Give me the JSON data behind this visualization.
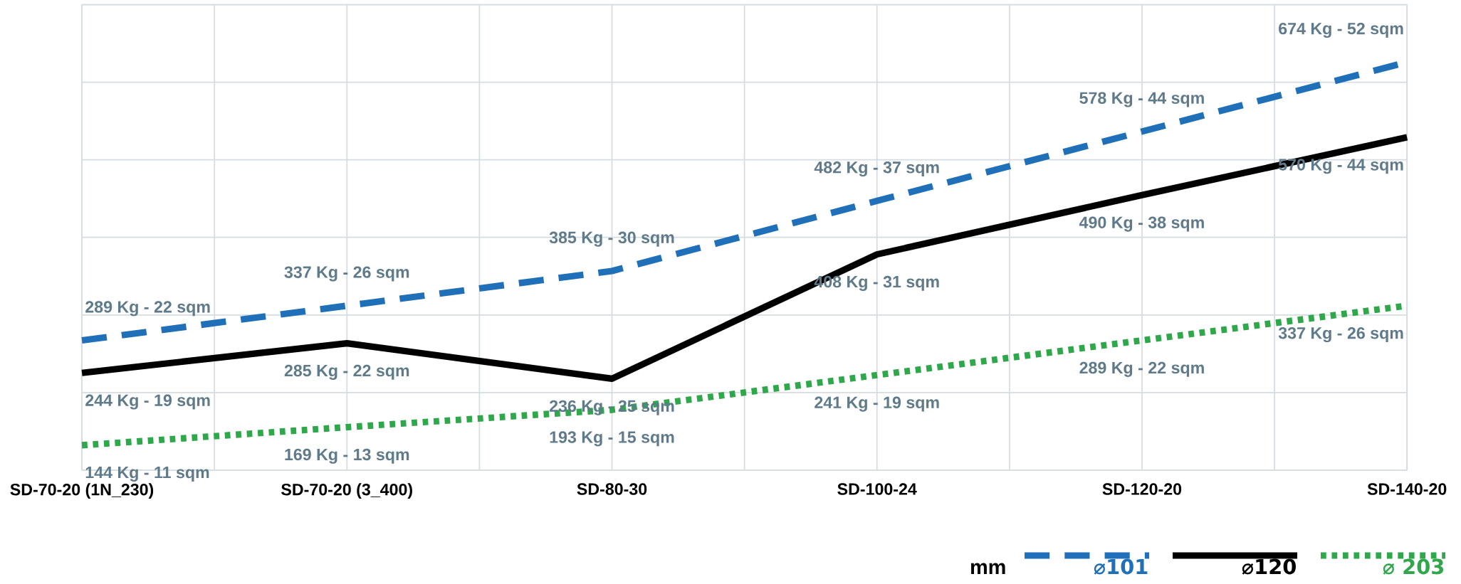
{
  "chart_data": {
    "type": "line",
    "grid": true,
    "legend": "bottom right",
    "legend_title": "mm",
    "categories": [
      "SD-70-20 (1N_230)",
      "SD-70-20 (3_400)",
      "SD-80-30",
      "SD-100-24",
      "SD-120-20",
      "SD-140-20"
    ],
    "series": [
      {
        "name": "⌀101",
        "color": "#1f70b8",
        "line_style": "dashed",
        "values": [
          289,
          337,
          385,
          482,
          578,
          674
        ],
        "value_labels": [
          "289 Kg - 22 sqm",
          "337 Kg - 26 sqm",
          "385 Kg - 30 sqm",
          "482 Kg - 37 sqm",
          "578 Kg - 44 sqm",
          "674 Kg - 52 sqm"
        ]
      },
      {
        "name": "⌀120",
        "color": "#000000",
        "line_style": "solid",
        "values": [
          244,
          285,
          236,
          408,
          490,
          570
        ],
        "value_labels": [
          "244 Kg - 19 sqm",
          "285 Kg - 22 sqm",
          "236 Kg - 25 sqm",
          "408 Kg - 31 sqm",
          "490 Kg - 38 sqm",
          "570 Kg - 44 sqm"
        ]
      },
      {
        "name": "⌀ 203",
        "color": "#2ea84a",
        "line_style": "dotted",
        "values": [
          144,
          169,
          193,
          241,
          289,
          337
        ],
        "value_labels": [
          "144 Kg - 11 sqm",
          "169 Kg - 13 sqm",
          "193 Kg - 15 sqm",
          "241 Kg - 19 sqm",
          "289 Kg - 22 sqm",
          "337 Kg - 26 sqm"
        ]
      }
    ]
  }
}
